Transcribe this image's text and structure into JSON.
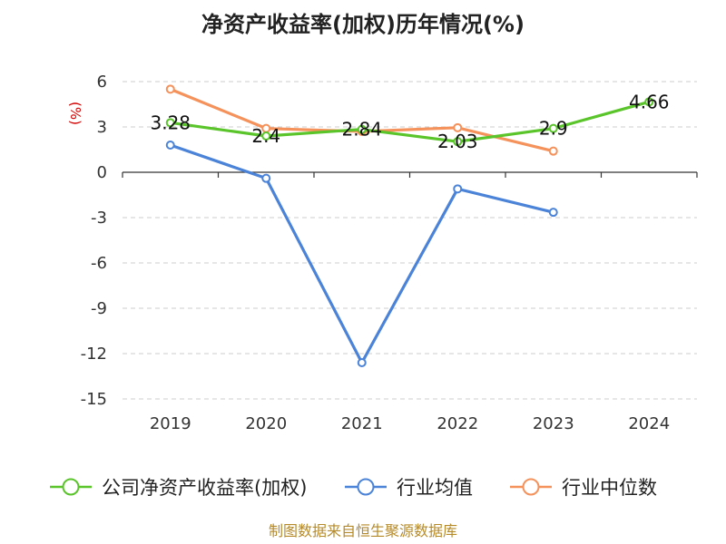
{
  "chart_data": {
    "type": "line",
    "title": "净资产收益率(加权)历年情况(%)",
    "ylabel": "(%)",
    "xlabel": "",
    "categories": [
      "2019",
      "2020",
      "2021",
      "2022",
      "2023",
      "2024"
    ],
    "ylim": [
      -15,
      6
    ],
    "yticks": [
      6,
      3,
      0,
      -3,
      -6,
      -9,
      -12,
      -15
    ],
    "grid": true,
    "legend_position": "bottom",
    "series": [
      {
        "name": "公司净资产收益率(加权)",
        "color": "#5ac42b",
        "values": [
          3.28,
          2.4,
          2.84,
          2.03,
          2.9,
          4.66
        ],
        "labels": [
          "3.28",
          "2.4",
          "2.84",
          "2.03",
          "2.9",
          "4.66"
        ]
      },
      {
        "name": "行业均值",
        "color": "#4b83d8",
        "values": [
          1.8,
          -0.4,
          -12.6,
          -1.1,
          -2.65,
          null
        ]
      },
      {
        "name": "行业中位数",
        "color": "#f5915a",
        "values": [
          5.5,
          2.9,
          2.7,
          2.95,
          1.4,
          null
        ]
      }
    ],
    "source": "制图数据来自恒生聚源数据库"
  }
}
